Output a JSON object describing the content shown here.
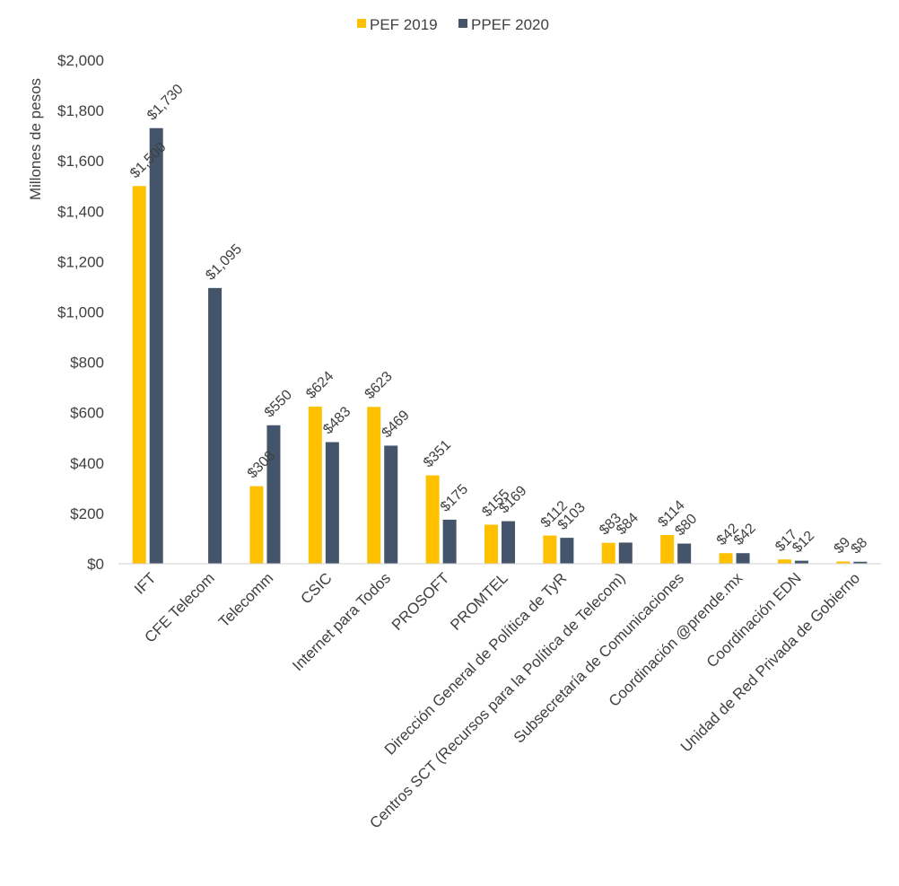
{
  "chart_data": {
    "type": "bar",
    "ylabel": "Millones de pesos",
    "xlabel": "",
    "ylim": [
      0,
      2000
    ],
    "yticks": [
      "$0",
      "$200",
      "$400",
      "$600",
      "$800",
      "$1,000",
      "$1,200",
      "$1,400",
      "$1,600",
      "$1,800",
      "$2,000"
    ],
    "ytick_values": [
      0,
      200,
      400,
      600,
      800,
      1000,
      1200,
      1400,
      1600,
      1800,
      2000
    ],
    "grid": false,
    "legend_position": "top",
    "categories": [
      "IFT",
      "CFE Telecom",
      "Telecomm",
      "CSIC",
      "Internet para Todos",
      "PROSOFT",
      "PROMTEL",
      "Dirección General de Política de TyR",
      "Centros SCT (Recursos para la Política de Telecom)",
      "Subsecretaría de Comunicaciones",
      "Coordinación @prende.mx",
      "Coordinación EDN",
      "Unidad de Red Privada de Gobierno"
    ],
    "series": [
      {
        "name": "PEF 2019",
        "color": "#FFC000",
        "values": [
          1500,
          null,
          308,
          624,
          623,
          351,
          155,
          112,
          83,
          114,
          42,
          17,
          9
        ],
        "labels": [
          "$1,500",
          "",
          "$308",
          "$624",
          "$623",
          "$351",
          "$155",
          "$112",
          "$83",
          "$114",
          "$42",
          "$17",
          "$9"
        ]
      },
      {
        "name": "PPEF 2020",
        "color": "#44546A",
        "values": [
          1730,
          1095,
          550,
          483,
          469,
          175,
          169,
          103,
          84,
          80,
          42,
          12,
          8
        ],
        "labels": [
          "$1,730",
          "$1,095",
          "$550",
          "$483",
          "$469",
          "$175",
          "$169",
          "$103",
          "$84",
          "$80",
          "$42",
          "$12",
          "$8"
        ]
      }
    ]
  }
}
